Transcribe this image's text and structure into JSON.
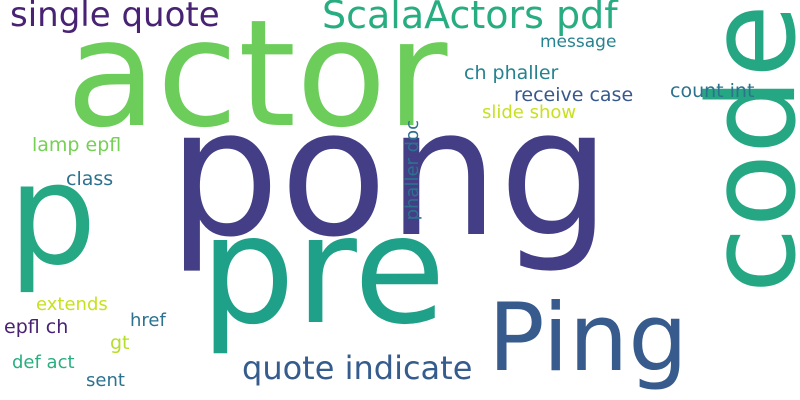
{
  "words": {
    "pong": "pong",
    "actor": "actor",
    "code": "code",
    "pre": "pre",
    "p": "p",
    "ping": "Ping",
    "scala_actors_pdf": "ScalaActors pdf",
    "single_quote": "single quote",
    "quote_indicate": "quote indicate",
    "message": "message",
    "ch_phaller": "ch phaller",
    "receive_case": "receive case",
    "count_int": "count int",
    "slide_show": "slide show",
    "lamp_epfl": "lamp epfl",
    "class": "class",
    "phaller_doc": "phaller doc",
    "extends": "extends",
    "href": "href",
    "epfl_ch": "epfl ch",
    "gt": "gt",
    "def_act": "def act",
    "sent": "sent"
  }
}
